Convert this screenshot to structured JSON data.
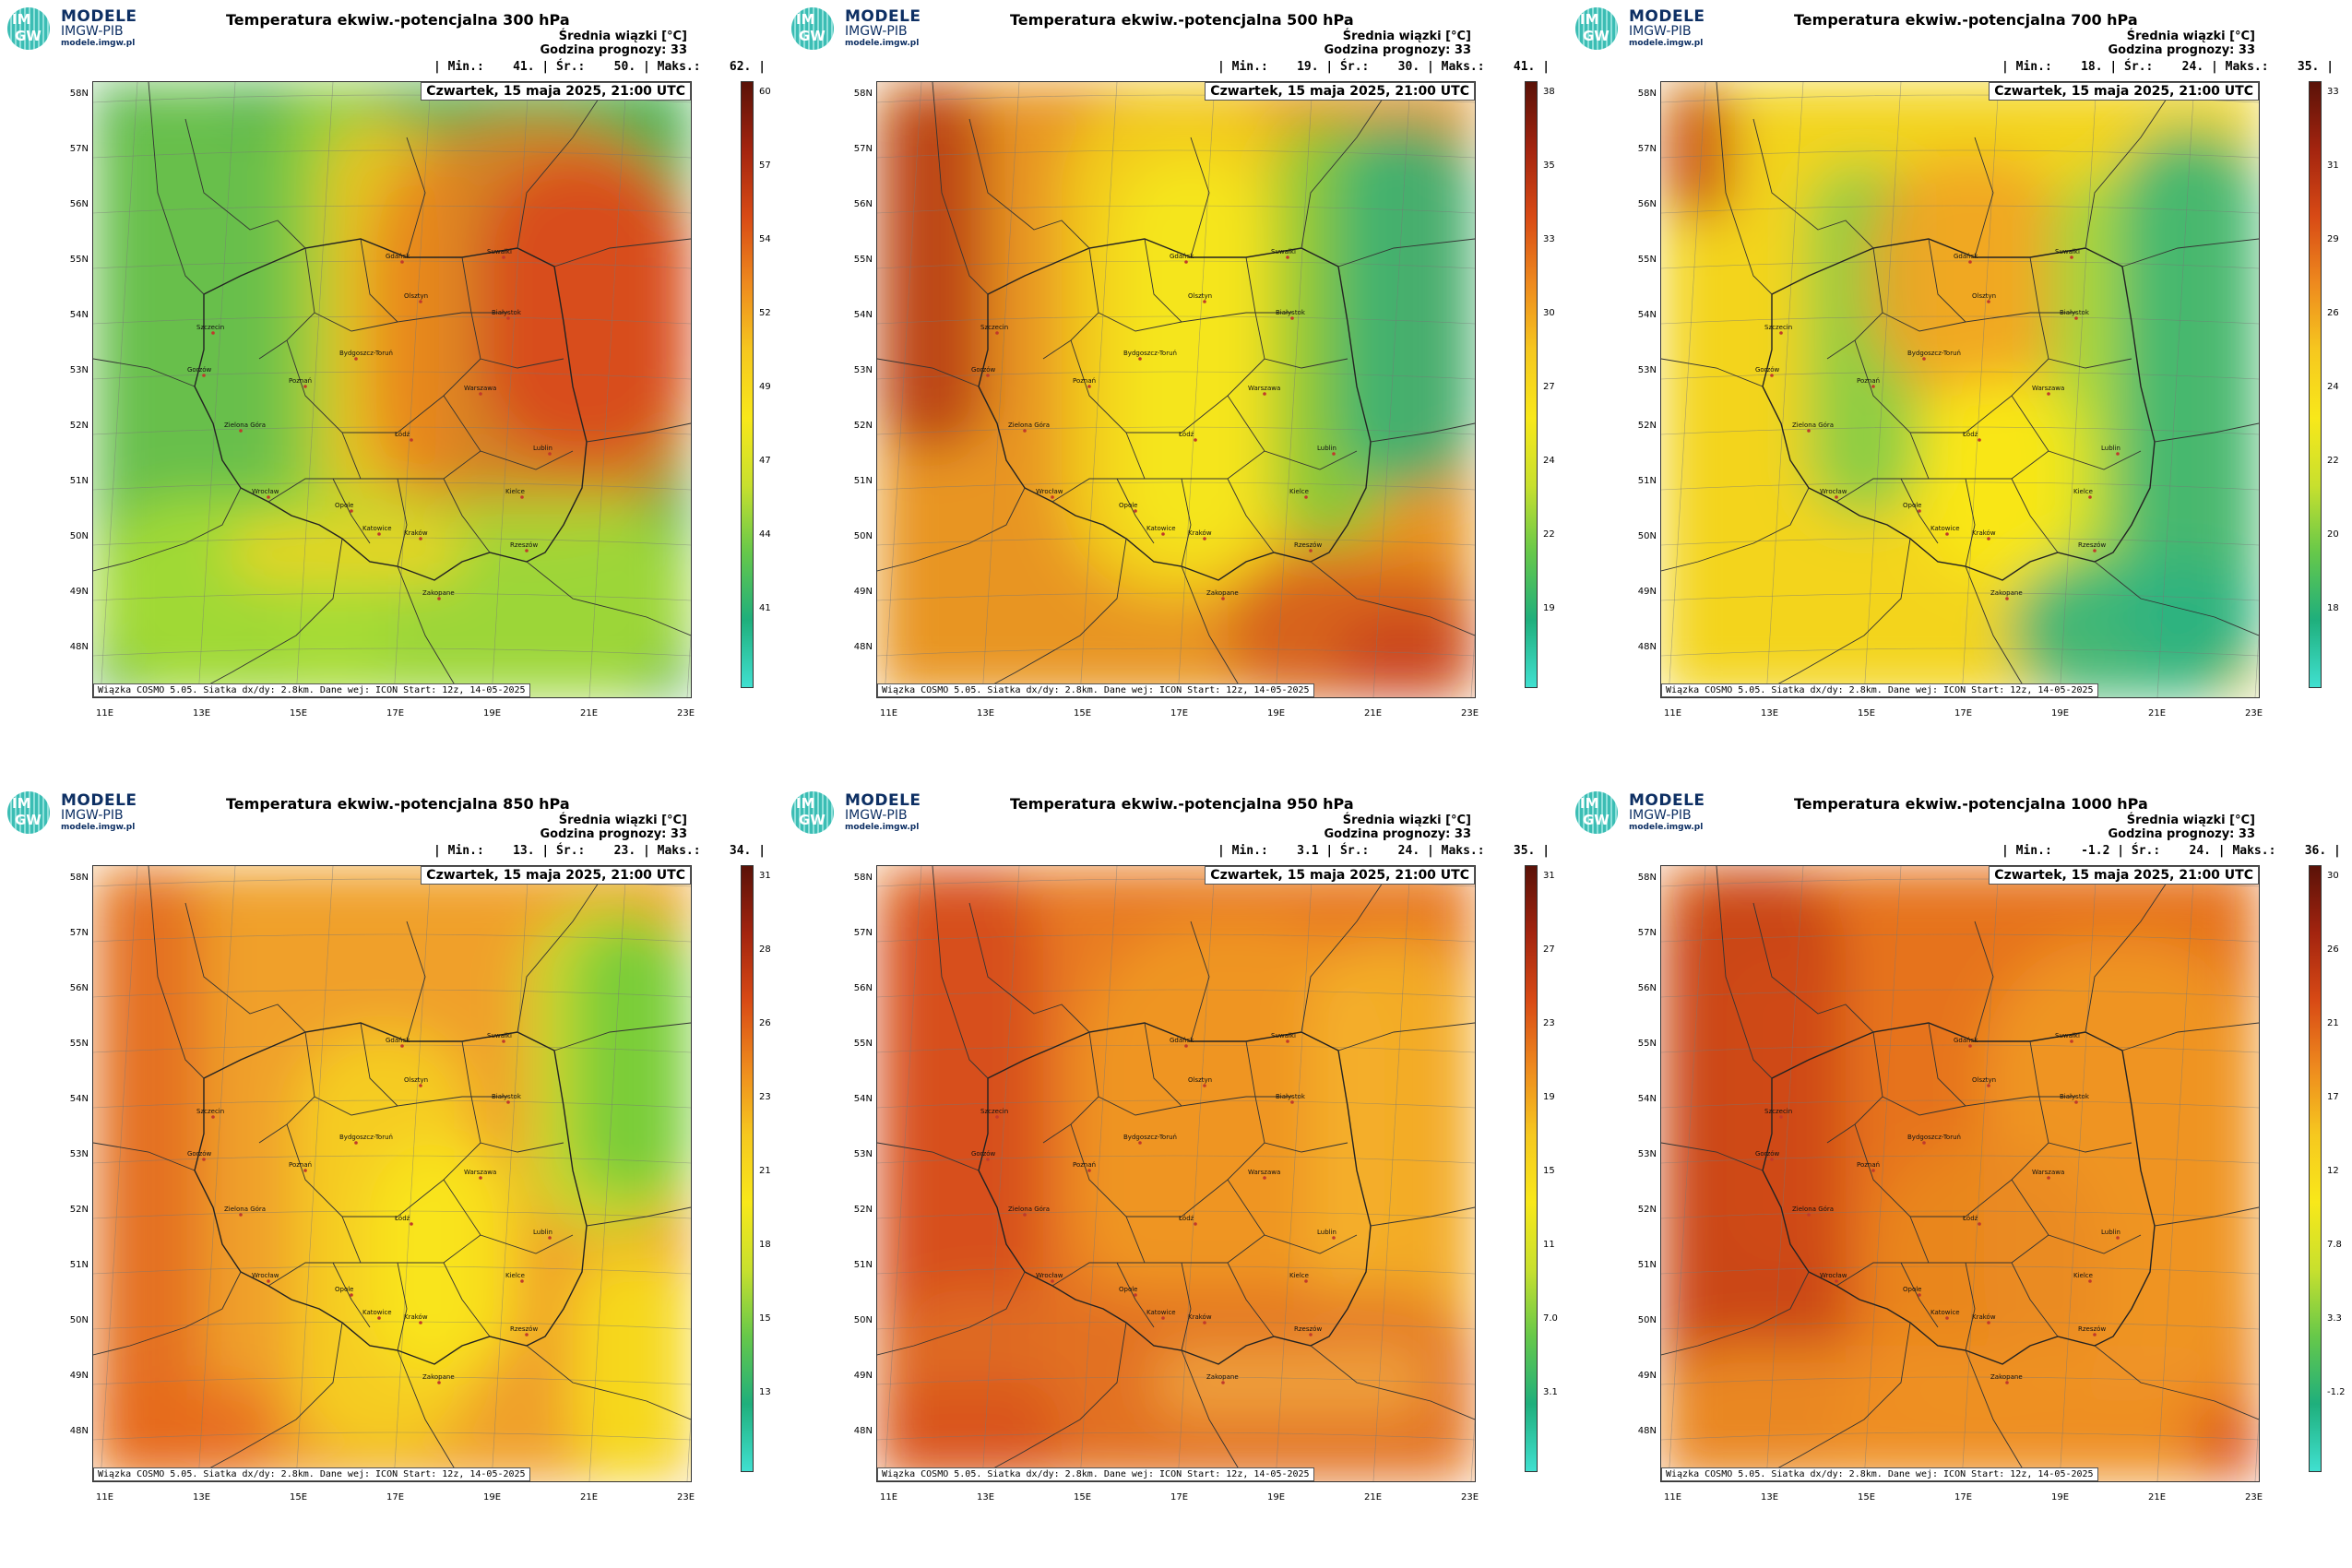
{
  "logo": {
    "circle_top": "IM",
    "circle_bottom": "GW",
    "line1": "MODELE",
    "line2": "IMGW-PIB",
    "line3": "modele.imgw.pl"
  },
  "common": {
    "info_line1": "Średnia wiązki [°C]",
    "info_line2": "Godzina prognozy: 33",
    "datetime": "Czwartek, 15 maja 2025, 21:00 UTC",
    "footer": "Wiązka COSMO 5.05. Siatka dx/dy: 2.8km. Dane wej: ICON Start: 12z, 14-05-2025",
    "lat_labels": [
      "58N",
      "57N",
      "56N",
      "55N",
      "54N",
      "53N",
      "52N",
      "51N",
      "50N",
      "49N",
      "48N"
    ],
    "lon_labels": [
      "11E",
      "13E",
      "15E",
      "17E",
      "19E",
      "21E",
      "23E"
    ]
  },
  "panels": [
    {
      "title": "Temperatura ekwiw.-potencjalna 300 hPa",
      "stats": "| Min.:    41. | Śr.:    50. | Maks.:    62. |",
      "cbar_labels": [
        "60",
        "57",
        "54",
        "52",
        "49",
        "47",
        "44",
        "41"
      ],
      "scheme": "p300"
    },
    {
      "title": "Temperatura ekwiw.-potencjalna 500 hPa",
      "stats": "| Min.:    19. | Śr.:    30. | Maks.:    41. |",
      "cbar_labels": [
        "38",
        "35",
        "33",
        "30",
        "27",
        "24",
        "22",
        "19"
      ],
      "scheme": "p500"
    },
    {
      "title": "Temperatura ekwiw.-potencjalna 700 hPa",
      "stats": "| Min.:    18. | Śr.:    24. | Maks.:    35. |",
      "cbar_labels": [
        "33",
        "31",
        "29",
        "26",
        "24",
        "22",
        "20",
        "18"
      ],
      "scheme": "p700"
    },
    {
      "title": "Temperatura ekwiw.-potencjalna 850 hPa",
      "stats": "| Min.:    13. | Śr.:    23. | Maks.:    34. |",
      "cbar_labels": [
        "31",
        "28",
        "26",
        "23",
        "21",
        "18",
        "15",
        "13"
      ],
      "scheme": "p850"
    },
    {
      "title": "Temperatura ekwiw.-potencjalna 950 hPa",
      "stats": "| Min.:    3.1 | Śr.:    24. | Maks.:    35. |",
      "cbar_labels": [
        "31",
        "27",
        "23",
        "19",
        "15",
        "11",
        "7.0",
        "3.1"
      ],
      "scheme": "p950"
    },
    {
      "title": "Temperatura ekwiw.-potencjalna 1000 hPa",
      "stats": "| Min.:    -1.2 | Śr.:    24. | Maks.:    36. |",
      "cbar_labels": [
        "30",
        "26",
        "21",
        "17",
        "12",
        "7.8",
        "3.3",
        "-1.2"
      ],
      "scheme": "p1000"
    }
  ],
  "cities": [
    "Gdańsk",
    "Olsztyn",
    "Suwałki",
    "Białystok",
    "Szczecin",
    "Bydgoszcz-Toruń",
    "Gorzów",
    "Poznań",
    "Warszawa",
    "Zielona Góra",
    "Łódź",
    "Lublin",
    "Wrocław",
    "Kielce",
    "Opole",
    "Katowice",
    "Kraków",
    "Rzeszów",
    "Zakopane"
  ],
  "colors": {
    "cbar_top": "#5a1208",
    "cbar_mid": "#f8e81a",
    "cbar_bottom": "#40e0d0"
  }
}
